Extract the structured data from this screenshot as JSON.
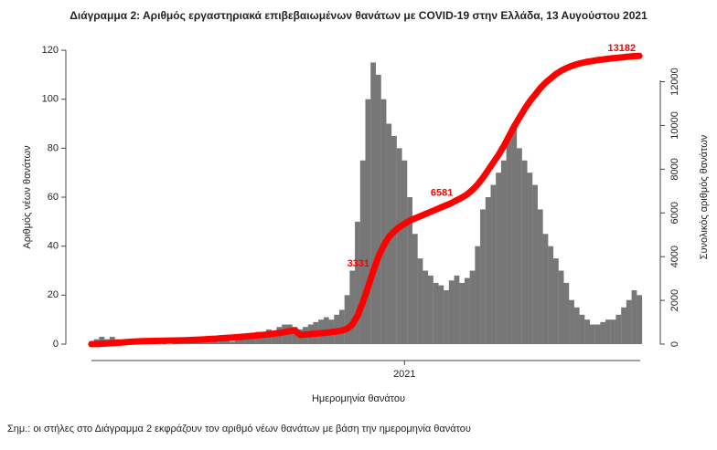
{
  "chart_data": {
    "type": "bar",
    "title": "Διάγραμμα 2: Αριθμός εργαστηριακά επιβεβαιωμένων θανάτων με COVID-19 στην Ελλάδα, 13 Αυγούστου 2021",
    "y_label": "Αριθμός νέων θανάτων",
    "y2_label": "Συνολικός αριθμός θανάτων",
    "x_label": "Ημερομηνία θανάτου",
    "note": "Σημ.: οι στήλες στο Διάγραμμα 2 εκφράζουν τον αριθμό νέων θανάτων με βάση την ημερομηνία θανάτου",
    "categories": [
      null,
      null,
      null,
      null,
      null,
      null,
      null,
      null,
      null,
      null,
      null,
      null,
      null,
      null,
      null,
      null,
      null,
      null,
      null,
      null,
      null,
      null,
      null,
      null,
      null,
      null,
      null,
      null,
      null,
      null,
      null,
      null,
      null,
      null,
      null,
      null,
      null,
      null,
      null,
      null,
      null,
      null,
      null,
      null,
      null,
      null,
      null,
      null,
      null,
      null,
      null,
      null,
      null,
      null,
      null,
      null,
      null,
      null,
      null,
      null,
      "2021",
      null,
      null,
      null,
      null,
      null,
      null,
      null,
      null,
      null,
      null,
      null,
      null,
      null,
      null,
      null,
      null,
      null,
      null,
      null,
      null,
      null,
      null,
      null,
      null,
      null,
      null,
      null,
      null,
      null,
      null,
      null,
      null,
      null,
      null,
      null,
      null,
      null,
      null,
      null,
      null,
      null,
      null,
      null,
      null,
      null
    ],
    "ylim": [
      0,
      125
    ],
    "yticks": [
      0,
      20,
      40,
      60,
      80,
      100,
      120
    ],
    "y2lim": [
      0,
      14000
    ],
    "y2ticks": [
      0,
      2000,
      4000,
      6000,
      8000,
      10000,
      12000
    ],
    "series": [
      {
        "type": "bar",
        "color": "#777777",
        "values": [
          1,
          2,
          3,
          2,
          3,
          2,
          1,
          1,
          1,
          0,
          1,
          0,
          1,
          0,
          1,
          0,
          1,
          1,
          1,
          1,
          1,
          1,
          2,
          2,
          1,
          3,
          2,
          1,
          3,
          4,
          3,
          4,
          5,
          5,
          6,
          5,
          7,
          8,
          8,
          7,
          6,
          7,
          8,
          9,
          10,
          11,
          10,
          12,
          14,
          20,
          30,
          50,
          75,
          100,
          115,
          110,
          100,
          90,
          85,
          80,
          75,
          60,
          45,
          35,
          30,
          28,
          25,
          24,
          22,
          26,
          28,
          25,
          27,
          30,
          40,
          55,
          60,
          65,
          70,
          75,
          85,
          90,
          80,
          75,
          70,
          65,
          55,
          45,
          40,
          35,
          30,
          25,
          18,
          15,
          12,
          10,
          8,
          8,
          9,
          10,
          10,
          12,
          15,
          18,
          22,
          20
        ]
      },
      {
        "type": "line",
        "axis": "y2",
        "color": "#ff0000",
        "values": [
          0,
          5,
          15,
          30,
          45,
          60,
          80,
          100,
          115,
          125,
          135,
          140,
          145,
          150,
          155,
          160,
          165,
          170,
          180,
          190,
          200,
          210,
          225,
          240,
          250,
          270,
          285,
          300,
          320,
          340,
          360,
          380,
          400,
          425,
          450,
          480,
          510,
          550,
          590,
          630,
          420,
          440,
          460,
          480,
          500,
          520,
          550,
          580,
          620,
          700,
          900,
          1300,
          1900,
          2600,
          3331,
          4000,
          4500,
          4900,
          5150,
          5350,
          5500,
          5650,
          5750,
          5850,
          5950,
          6050,
          6150,
          6250,
          6350,
          6450,
          6581,
          6700,
          6850,
          7050,
          7300,
          7600,
          7950,
          8300,
          8650,
          9050,
          9500,
          9950,
          10350,
          10750,
          11100,
          11400,
          11700,
          11950,
          12150,
          12350,
          12500,
          12620,
          12720,
          12800,
          12860,
          12910,
          12950,
          12990,
          13020,
          13050,
          13075,
          13100,
          13125,
          13150,
          13170,
          13182
        ],
        "value_labels": [
          null,
          null,
          null,
          null,
          null,
          null,
          null,
          null,
          null,
          null,
          null,
          null,
          null,
          null,
          null,
          null,
          null,
          null,
          null,
          null,
          null,
          null,
          null,
          null,
          null,
          null,
          null,
          null,
          null,
          null,
          null,
          null,
          null,
          null,
          null,
          null,
          null,
          null,
          null,
          null,
          null,
          null,
          null,
          null,
          null,
          null,
          null,
          null,
          null,
          null,
          null,
          null,
          null,
          null,
          "3331",
          null,
          null,
          null,
          null,
          null,
          null,
          null,
          null,
          null,
          null,
          null,
          null,
          null,
          null,
          null,
          "6581",
          null,
          null,
          null,
          null,
          null,
          null,
          null,
          null,
          null,
          null,
          null,
          null,
          null,
          null,
          null,
          null,
          null,
          null,
          null,
          null,
          null,
          null,
          null,
          null,
          null,
          null,
          null,
          null,
          null,
          null,
          null,
          null,
          null,
          null,
          "13182"
        ]
      }
    ]
  }
}
